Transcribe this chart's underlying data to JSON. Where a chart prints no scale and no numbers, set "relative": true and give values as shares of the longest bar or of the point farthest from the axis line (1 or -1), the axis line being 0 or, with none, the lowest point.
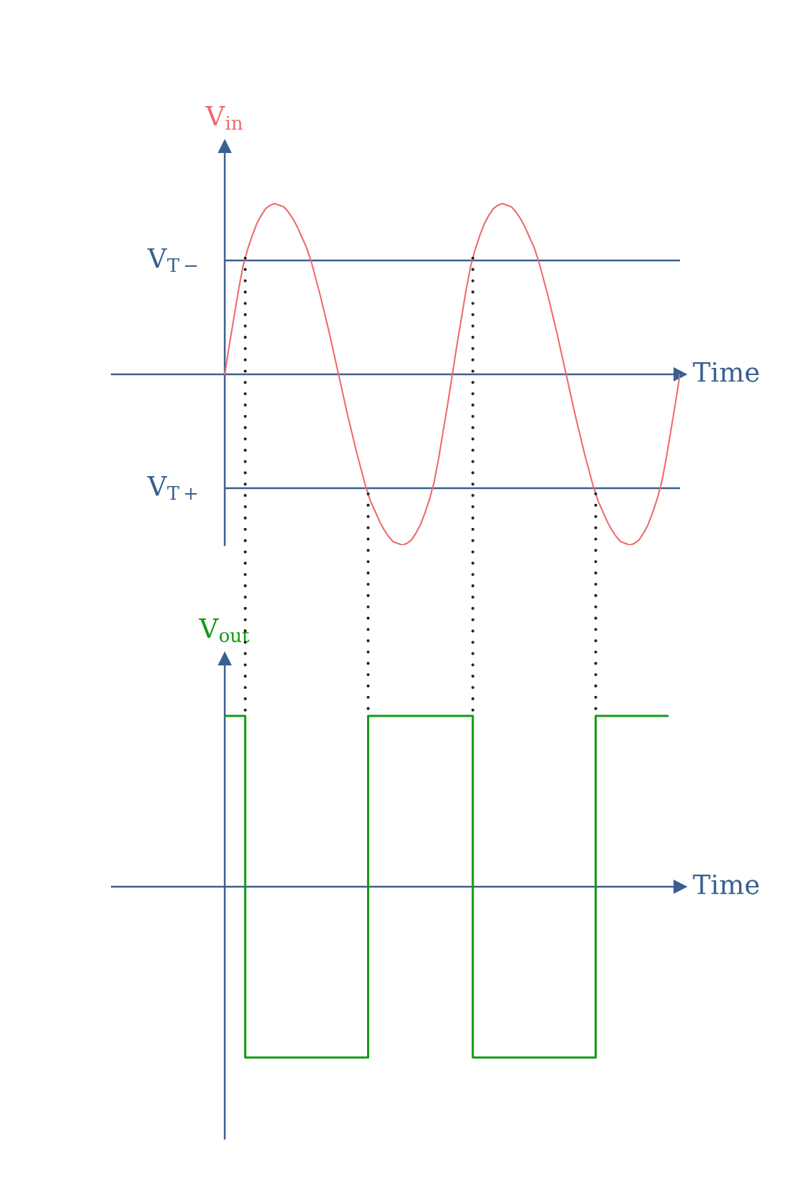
{
  "chart_data": [
    {
      "type": "line",
      "ylabel": "V$_{in}$",
      "xlabel": "Time",
      "relative": true,
      "tick_labels": false,
      "categories": [
        null,
        null,
        null,
        null,
        null,
        null,
        null,
        null,
        null,
        null,
        null,
        null,
        null,
        null,
        null,
        null,
        null,
        null,
        null,
        null,
        null,
        null,
        null,
        null,
        null,
        null,
        null,
        null,
        null,
        null,
        null,
        null,
        null,
        null,
        null,
        null,
        null,
        null,
        null,
        null,
        null,
        null,
        null,
        null,
        null,
        null,
        null,
        null,
        null,
        null,
        null,
        null,
        null,
        null,
        null,
        null,
        null,
        null,
        null,
        null,
        null,
        null,
        null,
        null,
        null,
        null,
        null,
        null,
        null,
        null,
        null,
        null,
        null,
        null,
        null,
        null,
        null,
        null,
        null,
        null,
        null,
        null,
        null,
        null,
        null,
        null,
        null,
        null,
        null,
        null,
        null,
        null,
        null,
        null,
        null,
        null,
        null,
        null,
        null,
        null,
        null
      ],
      "series": [
        {
          "color": "#ef6a6a",
          "values": [
            0,
            0.17,
            0.33,
            0.49,
            0.63,
            0.73,
            0.81,
            0.88,
            0.93,
            0.97,
            0.99,
            1,
            0.99,
            0.98,
            0.95,
            0.91,
            0.86,
            0.8,
            0.74,
            0.66,
            0.56,
            0.46,
            0.35,
            0.24,
            0.12,
            0,
            -0.12,
            -0.24,
            -0.35,
            -0.46,
            -0.56,
            -0.66,
            -0.74,
            -0.8,
            -0.86,
            -0.91,
            -0.95,
            -0.98,
            -0.99,
            -1,
            -0.99,
            -0.97,
            -0.93,
            -0.88,
            -0.81,
            -0.73,
            -0.63,
            -0.49,
            -0.33,
            -0.17,
            0,
            0.17,
            0.33,
            0.49,
            0.63,
            0.73,
            0.81,
            0.88,
            0.93,
            0.97,
            0.99,
            1,
            0.99,
            0.98,
            0.95,
            0.91,
            0.86,
            0.8,
            0.74,
            0.66,
            0.56,
            0.46,
            0.35,
            0.24,
            0.12,
            0,
            -0.12,
            -0.24,
            -0.35,
            -0.46,
            -0.56,
            -0.66,
            -0.74,
            -0.8,
            -0.86,
            -0.91,
            -0.95,
            -0.98,
            -0.99,
            -1,
            -0.99,
            -0.97,
            -0.93,
            -0.88,
            -0.81,
            -0.73,
            -0.63,
            -0.49,
            -0.33,
            -0.17,
            0
          ]
        }
      ],
      "ref_lines": [
        {
          "axis": "y",
          "value": 0,
          "color": "#3b5f8e"
        },
        {
          "axis": "y",
          "value": 0.667,
          "label": "V$_{T−}$",
          "color": "#3b5f8e"
        },
        {
          "axis": "y",
          "value": -0.667,
          "label": "V$_{T+}$",
          "color": "#3b5f8e"
        }
      ]
    },
    {
      "type": "step",
      "ylabel": "V$_{out}$",
      "xlabel": "Time",
      "relative": true,
      "tick_labels": false,
      "categories": [
        null,
        null,
        null,
        null,
        null,
        null,
        null,
        null,
        null,
        null,
        null,
        null,
        null,
        null,
        null,
        null,
        null,
        null,
        null,
        null,
        null,
        null,
        null,
        null,
        null,
        null,
        null,
        null,
        null,
        null,
        null,
        null,
        null,
        null,
        null,
        null,
        null,
        null,
        null,
        null,
        null,
        null,
        null,
        null,
        null,
        null,
        null,
        null,
        null,
        null,
        null,
        null,
        null,
        null,
        null,
        null,
        null,
        null,
        null,
        null,
        null,
        null,
        null,
        null,
        null,
        null,
        null,
        null,
        null,
        null,
        null,
        null,
        null,
        null,
        null,
        null,
        null,
        null,
        null,
        null,
        null,
        null,
        null,
        null,
        null,
        null,
        null,
        null,
        null,
        null,
        null,
        null,
        null,
        null,
        null,
        null,
        null,
        null,
        null,
        null,
        null
      ],
      "series": [
        {
          "color": "#139913",
          "values": [
            1,
            1,
            1,
            1,
            1,
            -1,
            -1,
            -1,
            -1,
            -1,
            -1,
            -1,
            -1,
            -1,
            -1,
            -1,
            -1,
            -1,
            -1,
            -1,
            -1,
            -1,
            -1,
            -1,
            -1,
            -1,
            -1,
            -1,
            -1,
            -1,
            -1,
            -1,
            1,
            1,
            1,
            1,
            1,
            1,
            1,
            1,
            1,
            1,
            1,
            1,
            1,
            1,
            1,
            1,
            1,
            1,
            1,
            1,
            1,
            1,
            1,
            -1,
            -1,
            -1,
            -1,
            -1,
            -1,
            -1,
            -1,
            -1,
            -1,
            -1,
            -1,
            -1,
            -1,
            -1,
            -1,
            -1,
            -1,
            -1,
            -1,
            -1,
            -1,
            -1,
            -1,
            -1,
            -1,
            -1,
            1,
            1,
            1,
            1,
            1,
            1,
            1,
            1,
            1,
            1,
            1,
            1,
            1,
            1,
            1,
            1,
            null,
            null,
            null
          ]
        }
      ],
      "ref_lines": [
        {
          "axis": "y",
          "value": 0,
          "color": "#3b5f8e"
        }
      ]
    }
  ]
}
